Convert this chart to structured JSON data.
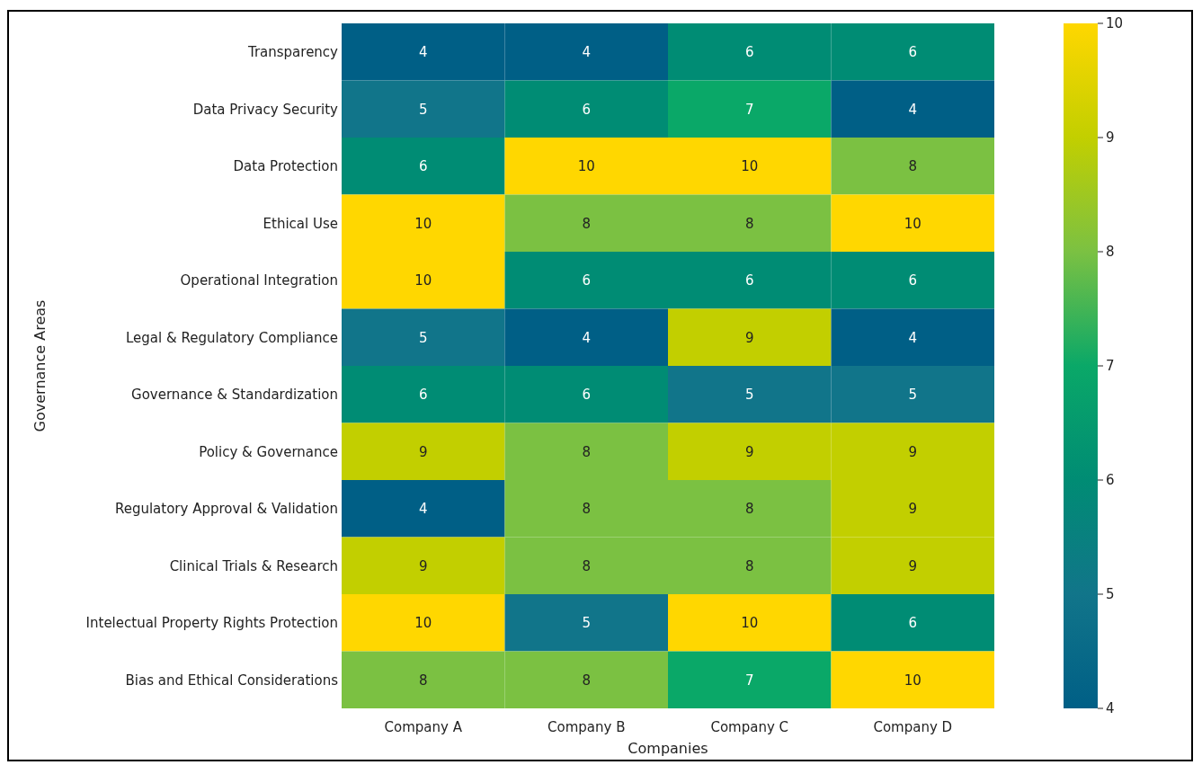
{
  "chart_data": {
    "type": "heatmap",
    "xlabel": "Companies",
    "ylabel": "Governance Areas",
    "categories": [
      "Company A",
      "Company B",
      "Company C",
      "Company D"
    ],
    "y_categories": [
      "Transparency",
      "Data Privacy Security",
      "Data Protection",
      "Ethical Use",
      "Operational Integration",
      "Legal & Regulatory Compliance",
      "Governance & Standardization",
      "Policy & Governance",
      "Regulatory Approval & Validation",
      "Clinical Trials & Research",
      "Intelectual Property Rights Protection",
      "Bias and Ethical Considerations"
    ],
    "cells": [
      [
        4,
        4,
        6,
        6
      ],
      [
        5,
        6,
        7,
        4
      ],
      [
        6,
        10,
        10,
        8
      ],
      [
        10,
        8,
        8,
        10
      ],
      [
        10,
        6,
        6,
        6
      ],
      [
        5,
        4,
        9,
        4
      ],
      [
        6,
        6,
        5,
        5
      ],
      [
        9,
        8,
        9,
        9
      ],
      [
        4,
        8,
        8,
        9
      ],
      [
        9,
        8,
        8,
        9
      ],
      [
        10,
        5,
        10,
        6
      ],
      [
        8,
        8,
        7,
        10
      ]
    ],
    "data_labels": true,
    "clim": [
      4,
      10
    ],
    "cticks": [
      4,
      5,
      6,
      7,
      8,
      9,
      10
    ]
  }
}
